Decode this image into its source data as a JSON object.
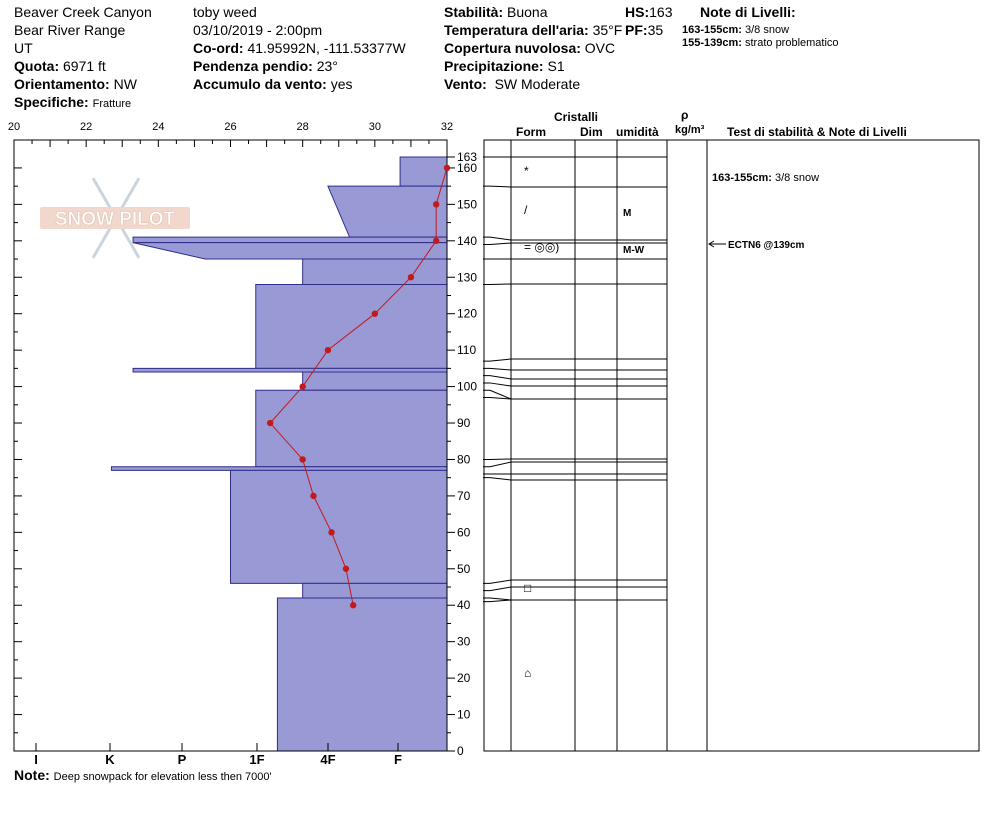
{
  "header": {
    "location": "Beaver Creek Canyon",
    "range": "Bear River Range",
    "state": "UT",
    "elevation_label": "Quota:",
    "elevation_value": "6971 ft",
    "aspect_label": "Orientamento:",
    "aspect_value": "NW",
    "specifics_label": "Specifiche:",
    "specifics_value": "Fratture",
    "observer": "toby weed",
    "datetime": "03/10/2019 - 2:00pm",
    "coord_label": "Co-ord:",
    "coord_value": "41.95992N, -111.53377W",
    "slope_label": "Pendenza pendio:",
    "slope_value": "23°",
    "wind_loading_label": "Accumulo da vento:",
    "wind_loading_value": "yes",
    "stability_label": "Stabilità:",
    "stability_value": "Buona",
    "air_temp_label": "Temperatura dell'aria:",
    "air_temp_value": "35°F",
    "cloud_label": "Copertura nuvolosa:",
    "cloud_value": "OVC",
    "precip_label": "Precipitazione:",
    "precip_value": "S1",
    "wind_label": "Vento:",
    "wind_value": "SW Moderate",
    "hs_label": "HS:",
    "hs_value": "163",
    "pf_label": "PF:",
    "pf_value": "35",
    "layer_notes_title": "Note di Livelli:",
    "layer_notes": [
      {
        "range": "163-155cm:",
        "text": "3/8 snow"
      },
      {
        "range": "155-139cm:",
        "text": "strato problematico"
      }
    ]
  },
  "columns": {
    "crystals": "Cristalli",
    "form": "Form",
    "size": "Dim",
    "moisture": "umidità",
    "rho": "ρ",
    "density_unit": "kg/m³",
    "tests": "Test di stabilità & Note di Livelli"
  },
  "note_label": "Note:",
  "note_text": "Deep snowpack for elevation less then 7000'",
  "watermark": "SNOW PILOT",
  "chart_data": {
    "type": "snow-profile",
    "temperature_axis": {
      "ticks": [
        "20",
        "22",
        "24",
        "26",
        "28",
        "30",
        "32"
      ],
      "range": [
        20,
        32
      ]
    },
    "depth_axis": {
      "ticks": [
        "0",
        "10",
        "20",
        "30",
        "40",
        "50",
        "60",
        "70",
        "80",
        "90",
        "100",
        "110",
        "120",
        "130",
        "140",
        "150",
        "160",
        "163"
      ],
      "range": [
        0,
        163
      ]
    },
    "hardness_axis": {
      "labels": [
        "I",
        "K",
        "P",
        "1F",
        "4F",
        "F"
      ]
    },
    "hardness_layers": [
      {
        "top": 163,
        "bottom": 155,
        "temp_left": 30.7
      },
      {
        "top": 155,
        "bottom": 141,
        "temp_left": 28.7,
        "temp_left_bottom": 29.3
      },
      {
        "top": 141,
        "bottom": 139.5,
        "temp_left": 23.3
      },
      {
        "top": 139.5,
        "bottom": 135,
        "temp_left": 23.3,
        "temp_left_bottom": 25.3
      },
      {
        "top": 135,
        "bottom": 128,
        "temp_left": 28.0
      },
      {
        "top": 128,
        "bottom": 105,
        "temp_left": 26.7
      },
      {
        "top": 105,
        "bottom": 104,
        "temp_left": 23.3
      },
      {
        "top": 104,
        "bottom": 99,
        "temp_left": 28.0
      },
      {
        "top": 99,
        "bottom": 78,
        "temp_left": 26.7
      },
      {
        "top": 78,
        "bottom": 77,
        "temp_left": 22.7
      },
      {
        "top": 77,
        "bottom": 46,
        "temp_left": 26.0
      },
      {
        "top": 46,
        "bottom": 42,
        "temp_left": 28.0
      },
      {
        "top": 42,
        "bottom": 0,
        "temp_left": 27.3
      }
    ],
    "temperature_profile": [
      {
        "depth": 160,
        "temp": 32.0
      },
      {
        "depth": 150,
        "temp": 31.7
      },
      {
        "depth": 140,
        "temp": 31.7
      },
      {
        "depth": 130,
        "temp": 31.0
      },
      {
        "depth": 120,
        "temp": 30.0
      },
      {
        "depth": 110,
        "temp": 28.7
      },
      {
        "depth": 100,
        "temp": 28.0
      },
      {
        "depth": 90,
        "temp": 27.1
      },
      {
        "depth": 80,
        "temp": 28.0
      },
      {
        "depth": 70,
        "temp": 28.3
      },
      {
        "depth": 60,
        "temp": 28.8
      },
      {
        "depth": 50,
        "temp": 29.2
      },
      {
        "depth": 40,
        "temp": 29.4
      }
    ],
    "layer_boundaries": [
      163,
      155,
      141,
      139,
      135,
      128,
      107,
      105,
      103,
      101,
      99,
      97,
      80,
      78,
      76,
      75,
      46,
      44,
      42,
      41
    ],
    "crystals": [
      {
        "depth": 159,
        "form": "*",
        "moisture": ""
      },
      {
        "depth": 148,
        "form": "/",
        "moisture": "M"
      },
      {
        "depth": 138,
        "form": "= ◎◎)",
        "moisture": "M-W"
      },
      {
        "depth": 44,
        "form": "□",
        "moisture": ""
      },
      {
        "depth": 20,
        "form": "⌂",
        "moisture": ""
      }
    ],
    "layer_notes": [
      {
        "depth": 159,
        "range": "163-155cm:",
        "text": "3/8 snow"
      }
    ],
    "stability_tests": [
      {
        "depth": 139,
        "text": "ECTN6 @139cm"
      }
    ]
  }
}
